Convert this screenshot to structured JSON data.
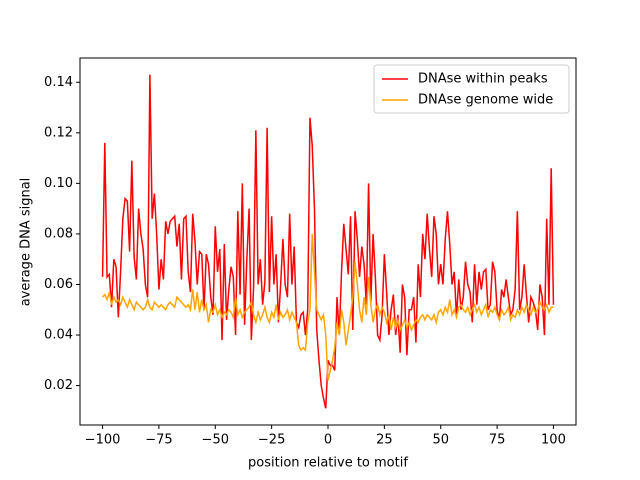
{
  "chart_data": {
    "type": "line",
    "x_label": "position relative to motif",
    "y_label": "average DNA signal",
    "legend": "upper right",
    "xlim": [
      -110,
      110
    ],
    "ylim": [
      0.0044,
      0.1496
    ],
    "xticks": [
      {
        "value": -100,
        "label": "−100"
      },
      {
        "value": -75,
        "label": "−75"
      },
      {
        "value": -50,
        "label": "−50"
      },
      {
        "value": -25,
        "label": "−25"
      },
      0,
      25,
      50,
      75,
      100
    ],
    "yticks": [
      0.02,
      0.04,
      0.06,
      0.08,
      {
        "value": 0.1,
        "label": "0.10"
      },
      0.12,
      0.14
    ],
    "x": [
      -100,
      -99,
      -98,
      -97,
      -96,
      -95,
      -94,
      -93,
      -92,
      -91,
      -90,
      -89,
      -88,
      -87,
      -86,
      -85,
      -84,
      -83,
      -82,
      -81,
      -80,
      -79,
      -78,
      -77,
      -76,
      -75,
      -74,
      -73,
      -72,
      -71,
      -70,
      -69,
      -68,
      -67,
      -66,
      -65,
      -64,
      -63,
      -62,
      -61,
      -60,
      -59,
      -58,
      -57,
      -56,
      -55,
      -54,
      -53,
      -52,
      -51,
      -50,
      -49,
      -48,
      -47,
      -46,
      -45,
      -44,
      -43,
      -42,
      -41,
      -40,
      -39,
      -38,
      -37,
      -36,
      -35,
      -34,
      -33,
      -32,
      -31,
      -30,
      -29,
      -28,
      -27,
      -26,
      -25,
      -24,
      -23,
      -22,
      -21,
      -20,
      -19,
      -18,
      -17,
      -16,
      -15,
      -14,
      -13,
      -12,
      -11,
      -10,
      -9,
      -8,
      -7,
      -6,
      -5,
      -4,
      -3,
      -2,
      -1,
      0,
      1,
      2,
      3,
      4,
      5,
      6,
      7,
      8,
      9,
      10,
      11,
      12,
      13,
      14,
      15,
      16,
      17,
      18,
      19,
      20,
      21,
      22,
      23,
      24,
      25,
      26,
      27,
      28,
      29,
      30,
      31,
      32,
      33,
      34,
      35,
      36,
      37,
      38,
      39,
      40,
      41,
      42,
      43,
      44,
      45,
      46,
      47,
      48,
      49,
      50,
      51,
      52,
      53,
      54,
      55,
      56,
      57,
      58,
      59,
      60,
      61,
      62,
      63,
      64,
      65,
      66,
      67,
      68,
      69,
      70,
      71,
      72,
      73,
      74,
      75,
      76,
      77,
      78,
      79,
      80,
      81,
      82,
      83,
      84,
      85,
      86,
      87,
      88,
      89,
      90,
      91,
      92,
      93,
      94,
      95,
      96,
      97,
      98,
      99,
      100
    ],
    "series": [
      {
        "name": "DNAse within peaks",
        "color": "#ff0000",
        "values": [
          0.063,
          0.116,
          0.063,
          0.064,
          0.051,
          0.07,
          0.067,
          0.047,
          0.065,
          0.086,
          0.094,
          0.093,
          0.073,
          0.109,
          0.071,
          0.062,
          0.09,
          0.08,
          0.074,
          0.06,
          0.055,
          0.143,
          0.086,
          0.096,
          0.08,
          0.058,
          0.07,
          0.062,
          0.085,
          0.08,
          0.085,
          0.086,
          0.087,
          0.075,
          0.084,
          0.062,
          0.086,
          0.087,
          0.065,
          0.057,
          0.088,
          0.077,
          0.06,
          0.073,
          0.072,
          0.05,
          0.072,
          0.068,
          0.055,
          0.048,
          0.083,
          0.065,
          0.074,
          0.038,
          0.076,
          0.046,
          0.058,
          0.067,
          0.063,
          0.04,
          0.089,
          0.056,
          0.1,
          0.044,
          0.07,
          0.09,
          0.038,
          0.059,
          0.121,
          0.06,
          0.07,
          0.052,
          0.061,
          0.122,
          0.057,
          0.087,
          0.06,
          0.072,
          0.045,
          0.06,
          0.078,
          0.06,
          0.055,
          0.088,
          0.06,
          0.075,
          0.045,
          0.043,
          0.048,
          0.049,
          0.04,
          0.05,
          0.126,
          0.115,
          0.09,
          0.042,
          0.03,
          0.02,
          0.015,
          0.011,
          0.03,
          0.028,
          0.028,
          0.026,
          0.055,
          0.04,
          0.065,
          0.084,
          0.074,
          0.064,
          0.087,
          0.042,
          0.089,
          0.078,
          0.063,
          0.075,
          0.068,
          0.052,
          0.1,
          0.053,
          0.08,
          0.063,
          0.04,
          0.038,
          0.048,
          0.072,
          0.057,
          0.04,
          0.05,
          0.056,
          0.04,
          0.048,
          0.033,
          0.06,
          0.055,
          0.032,
          0.05,
          0.05,
          0.055,
          0.037,
          0.068,
          0.055,
          0.08,
          0.07,
          0.088,
          0.074,
          0.063,
          0.087,
          0.08,
          0.06,
          0.068,
          0.06,
          0.078,
          0.089,
          0.076,
          0.06,
          0.065,
          0.047,
          0.062,
          0.05,
          0.055,
          0.069,
          0.06,
          0.057,
          0.045,
          0.068,
          0.052,
          0.065,
          0.058,
          0.065,
          0.066,
          0.05,
          0.052,
          0.069,
          0.065,
          0.05,
          0.046,
          0.058,
          0.055,
          0.062,
          0.055,
          0.048,
          0.05,
          0.058,
          0.089,
          0.05,
          0.055,
          0.068,
          0.056,
          0.045,
          0.055,
          0.053,
          0.05,
          0.042,
          0.06,
          0.055,
          0.04,
          0.086,
          0.052,
          0.106,
          0.052
        ]
      },
      {
        "name": "DNAse genome wide",
        "color": "#ffa500",
        "values": [
          0.055,
          0.056,
          0.054,
          0.057,
          0.052,
          0.055,
          0.053,
          0.054,
          0.052,
          0.055,
          0.053,
          0.051,
          0.054,
          0.052,
          0.05,
          0.053,
          0.052,
          0.051,
          0.05,
          0.051,
          0.054,
          0.051,
          0.05,
          0.053,
          0.052,
          0.051,
          0.052,
          0.051,
          0.05,
          0.052,
          0.053,
          0.052,
          0.051,
          0.055,
          0.054,
          0.053,
          0.052,
          0.051,
          0.052,
          0.05,
          0.058,
          0.05,
          0.057,
          0.049,
          0.054,
          0.05,
          0.052,
          0.045,
          0.05,
          0.049,
          0.052,
          0.048,
          0.05,
          0.047,
          0.049,
          0.048,
          0.05,
          0.049,
          0.047,
          0.055,
          0.048,
          0.05,
          0.047,
          0.049,
          0.05,
          0.051,
          0.053,
          0.048,
          0.045,
          0.049,
          0.046,
          0.048,
          0.051,
          0.047,
          0.045,
          0.049,
          0.047,
          0.052,
          0.046,
          0.049,
          0.047,
          0.048,
          0.05,
          0.046,
          0.049,
          0.047,
          0.045,
          0.036,
          0.034,
          0.035,
          0.034,
          0.045,
          0.05,
          0.08,
          0.065,
          0.05,
          0.048,
          0.046,
          0.048,
          0.04,
          0.022,
          0.026,
          0.03,
          0.035,
          0.045,
          0.04,
          0.05,
          0.045,
          0.036,
          0.042,
          0.048,
          0.055,
          0.069,
          0.06,
          0.05,
          0.045,
          0.055,
          0.048,
          0.063,
          0.052,
          0.045,
          0.05,
          0.052,
          0.048,
          0.051,
          0.049,
          0.045,
          0.048,
          0.042,
          0.047,
          0.043,
          0.046,
          0.042,
          0.044,
          0.046,
          0.043,
          0.045,
          0.042,
          0.044,
          0.046,
          0.045,
          0.047,
          0.048,
          0.046,
          0.048,
          0.047,
          0.046,
          0.048,
          0.045,
          0.049,
          0.05,
          0.048,
          0.051,
          0.049,
          0.054,
          0.048,
          0.05,
          0.047,
          0.051,
          0.052,
          0.05,
          0.049,
          0.051,
          0.048,
          0.05,
          0.052,
          0.049,
          0.051,
          0.048,
          0.05,
          0.052,
          0.047,
          0.05,
          0.049,
          0.051,
          0.048,
          0.046,
          0.05,
          0.048,
          0.049,
          0.051,
          0.046,
          0.048,
          0.047,
          0.05,
          0.048,
          0.051,
          0.049,
          0.052,
          0.05,
          0.048,
          0.051,
          0.049,
          0.05,
          0.053,
          0.051,
          0.05,
          0.052,
          0.049,
          0.051,
          0.051
        ]
      }
    ]
  }
}
